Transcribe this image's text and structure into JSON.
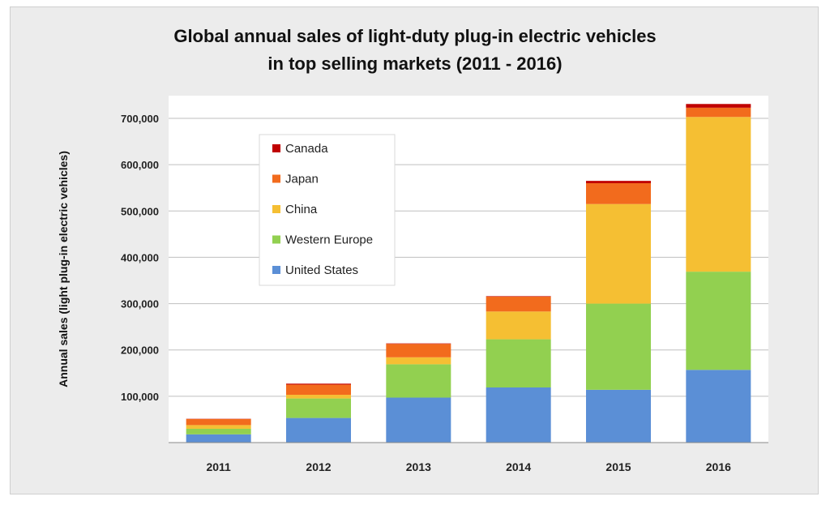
{
  "chart_data": {
    "type": "bar",
    "stacked": true,
    "title": "Global annual sales of light-duty plug-in electric vehicles",
    "subtitle": "in top selling markets (2011 - 2016)",
    "xlabel": "",
    "ylabel": "Annual sales (light plug-in electric vehicles)",
    "categories": [
      "2011",
      "2012",
      "2013",
      "2014",
      "2015",
      "2016"
    ],
    "ylim": [
      0,
      750000
    ],
    "yticks": [
      100000,
      200000,
      300000,
      400000,
      500000,
      600000,
      700000
    ],
    "ytick_labels": [
      "100,000",
      "200,000",
      "300,000",
      "400,000",
      "500,000",
      "600,000",
      "700,000"
    ],
    "grid": true,
    "legend_position": "top-left",
    "series": [
      {
        "name": "United States",
        "color": "#5b8fd6",
        "values": [
          17800,
          53200,
          97100,
          119000,
          114000,
          157000
        ]
      },
      {
        "name": "Western Europe",
        "color": "#92d050",
        "values": [
          12000,
          42000,
          72000,
          104000,
          186000,
          212000
        ]
      },
      {
        "name": "China",
        "color": "#f5bf33",
        "values": [
          8000,
          8000,
          15000,
          60000,
          215000,
          334000
        ]
      },
      {
        "name": "Japan",
        "color": "#f26b1d",
        "values": [
          13000,
          22000,
          29000,
          32000,
          45000,
          20000
        ]
      },
      {
        "name": "Canada",
        "color": "#c00000",
        "values": [
          500,
          2000,
          1000,
          1000,
          5000,
          8000
        ]
      }
    ]
  }
}
